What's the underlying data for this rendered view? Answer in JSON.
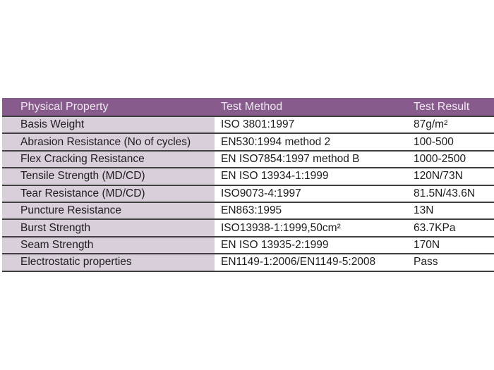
{
  "table": {
    "headers": {
      "property": "Physical Property",
      "method": "Test Method",
      "result": "Test Result"
    },
    "rows": [
      {
        "property": "Basis Weight",
        "method": "ISO 3801:1997",
        "result": "87g/m²"
      },
      {
        "property": "Abrasion Resistance (No of cycles)",
        "method": "EN530:1994 method 2",
        "result": "100-500"
      },
      {
        "property": "Flex Cracking Resistance",
        "method": "EN ISO7854:1997 method B",
        "result": "1000-2500"
      },
      {
        "property": "Tensile Strength (MD/CD)",
        "method": "EN ISO 13934-1:1999",
        "result": "120N/73N"
      },
      {
        "property": "Tear Resistance (MD/CD)",
        "method": "ISO9073-4:1997",
        "result": "81.5N/43.6N"
      },
      {
        "property": "Puncture Resistance",
        "method": "EN863:1995",
        "result": "13N"
      },
      {
        "property": "Burst Strength",
        "method": "ISO13938-1:1999,50cm²",
        "result": "63.7KPa"
      },
      {
        "property": "Seam Strength",
        "method": "EN ISO 13935-2:1999",
        "result": "170N"
      },
      {
        "property": "Electrostatic properties",
        "method": "EN1149-1:2006/EN1149-5:2008",
        "result": "Pass"
      }
    ]
  },
  "colors": {
    "header_bg": "#875c8c",
    "header_text": "#f0e9f2",
    "property_column_bg": "#d9cfdb",
    "row_divider": "#3f3f3f",
    "body_text": "#1e1c1e",
    "page_bg": "#ffffff"
  }
}
